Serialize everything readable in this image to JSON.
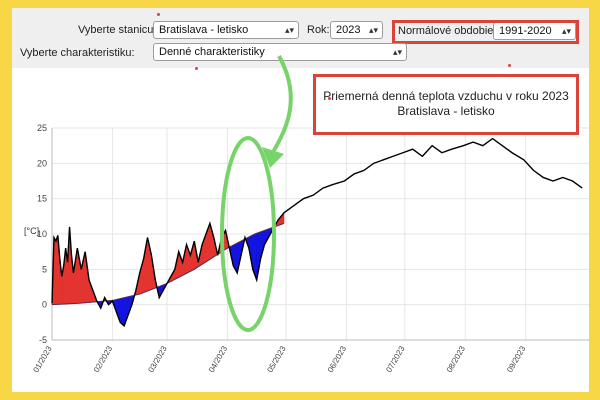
{
  "controls": {
    "station_label": "Vyberte stanicu:",
    "station_value": "Bratislava - letisko",
    "year_label": "Rok:",
    "year_value": "2023",
    "normal_label": "Normálové obdobie:",
    "normal_value": "1991-2020",
    "char_label": "Vyberte charakteristiku:",
    "char_value": "Denné charakteristiky"
  },
  "chart": {
    "title_line1": "Priemerná denná teplota vzduchu v roku 2023",
    "title_line2": "Bratislava - letisko",
    "ylabel": "[°C]"
  },
  "colors": {
    "above_normal": "#e3342f",
    "below_normal": "#1414e0",
    "temperature_line": "#000000",
    "highlight": "#77d36a",
    "annotation_box": "#d9433a"
  },
  "chart_data": {
    "type": "line",
    "ylabel": "[°C]",
    "ylim": [
      -5,
      25
    ],
    "yticks": [
      -5,
      0,
      5,
      10,
      15,
      20,
      25
    ],
    "xticks": [
      "01/2023",
      "02/2023",
      "03/2023",
      "04/2023",
      "05/2023",
      "06/2023",
      "07/2023",
      "08/2023",
      "09/2023"
    ],
    "series": [
      {
        "points": [
          [
            "2023-01-01",
            0.2
          ],
          [
            "2023-01-02",
            9.5
          ],
          [
            "2023-01-03",
            9.0
          ],
          [
            "2023-01-04",
            9.8
          ],
          [
            "2023-01-05",
            6.5
          ],
          [
            "2023-01-06",
            4.0
          ],
          [
            "2023-01-07",
            5.5
          ],
          [
            "2023-01-08",
            8.0
          ],
          [
            "2023-01-09",
            6.0
          ],
          [
            "2023-01-10",
            11.0
          ],
          [
            "2023-01-11",
            7.0
          ],
          [
            "2023-01-12",
            4.5
          ],
          [
            "2023-01-14",
            8.0
          ],
          [
            "2023-01-16",
            5.0
          ],
          [
            "2023-01-18",
            7.5
          ],
          [
            "2023-01-20",
            3.5
          ],
          [
            "2023-01-22",
            2.0
          ],
          [
            "2023-01-24",
            0.5
          ],
          [
            "2023-01-26",
            -0.5
          ],
          [
            "2023-01-28",
            1.0
          ],
          [
            "2023-01-30",
            0.0
          ],
          [
            "2023-02-01",
            0.5
          ],
          [
            "2023-02-03",
            -1.0
          ],
          [
            "2023-02-05",
            -2.5
          ],
          [
            "2023-02-07",
            -3.0
          ],
          [
            "2023-02-09",
            -1.5
          ],
          [
            "2023-02-11",
            0.0
          ],
          [
            "2023-02-13",
            2.0
          ],
          [
            "2023-02-15",
            4.5
          ],
          [
            "2023-02-17",
            6.5
          ],
          [
            "2023-02-19",
            9.5
          ],
          [
            "2023-02-21",
            7.0
          ],
          [
            "2023-02-23",
            3.5
          ],
          [
            "2023-02-25",
            1.0
          ],
          [
            "2023-02-27",
            2.0
          ],
          [
            "2023-03-01",
            3.0
          ],
          [
            "2023-03-03",
            4.0
          ],
          [
            "2023-03-05",
            5.0
          ],
          [
            "2023-03-07",
            7.5
          ],
          [
            "2023-03-09",
            6.0
          ],
          [
            "2023-03-11",
            8.5
          ],
          [
            "2023-03-13",
            7.0
          ],
          [
            "2023-03-15",
            9.0
          ],
          [
            "2023-03-17",
            6.0
          ],
          [
            "2023-03-19",
            8.5
          ],
          [
            "2023-03-21",
            10.0
          ],
          [
            "2023-03-23",
            11.5
          ],
          [
            "2023-03-25",
            9.5
          ],
          [
            "2023-03-27",
            7.0
          ],
          [
            "2023-03-29",
            9.5
          ],
          [
            "2023-03-31",
            10.5
          ],
          [
            "2023-04-02",
            8.0
          ],
          [
            "2023-04-04",
            5.5
          ],
          [
            "2023-04-06",
            4.5
          ],
          [
            "2023-04-08",
            7.0
          ],
          [
            "2023-04-10",
            9.5
          ],
          [
            "2023-04-12",
            8.0
          ],
          [
            "2023-04-14",
            5.0
          ],
          [
            "2023-04-16",
            3.5
          ],
          [
            "2023-04-18",
            6.5
          ],
          [
            "2023-04-20",
            8.5
          ],
          [
            "2023-04-22",
            9.5
          ],
          [
            "2023-04-24",
            10.5
          ],
          [
            "2023-04-27",
            12.0
          ],
          [
            "2023-04-30",
            13.0
          ],
          [
            "2023-05-05",
            14.0
          ],
          [
            "2023-05-10",
            15.0
          ],
          [
            "2023-05-15",
            15.5
          ],
          [
            "2023-05-20",
            16.5
          ],
          [
            "2023-05-25",
            17.0
          ],
          [
            "2023-05-31",
            17.5
          ],
          [
            "2023-06-05",
            18.5
          ],
          [
            "2023-06-10",
            19.0
          ],
          [
            "2023-06-15",
            20.0
          ],
          [
            "2023-06-20",
            20.5
          ],
          [
            "2023-06-25",
            21.0
          ],
          [
            "2023-06-30",
            21.5
          ],
          [
            "2023-07-05",
            22.0
          ],
          [
            "2023-07-10",
            21.0
          ],
          [
            "2023-07-15",
            22.5
          ],
          [
            "2023-07-20",
            21.5
          ],
          [
            "2023-07-25",
            22.0
          ],
          [
            "2023-07-31",
            22.5
          ],
          [
            "2023-08-05",
            23.0
          ],
          [
            "2023-08-10",
            22.5
          ],
          [
            "2023-08-15",
            23.5
          ],
          [
            "2023-08-20",
            22.5
          ],
          [
            "2023-08-25",
            21.5
          ],
          [
            "2023-08-31",
            20.5
          ],
          [
            "2023-09-05",
            19.0
          ],
          [
            "2023-09-10",
            18.0
          ],
          [
            "2023-09-15",
            17.5
          ],
          [
            "2023-09-20",
            18.0
          ],
          [
            "2023-09-25",
            17.5
          ],
          [
            "2023-09-30",
            16.5
          ]
        ]
      },
      {
        "points": [
          [
            "2023-01-01",
            0.0
          ],
          [
            "2023-01-15",
            0.2
          ],
          [
            "2023-02-01",
            0.6
          ],
          [
            "2023-02-15",
            1.5
          ],
          [
            "2023-03-01",
            3.0
          ],
          [
            "2023-03-15",
            5.0
          ],
          [
            "2023-04-01",
            8.0
          ],
          [
            "2023-04-15",
            10.0
          ],
          [
            "2023-04-30",
            11.5
          ]
        ]
      }
    ]
  }
}
